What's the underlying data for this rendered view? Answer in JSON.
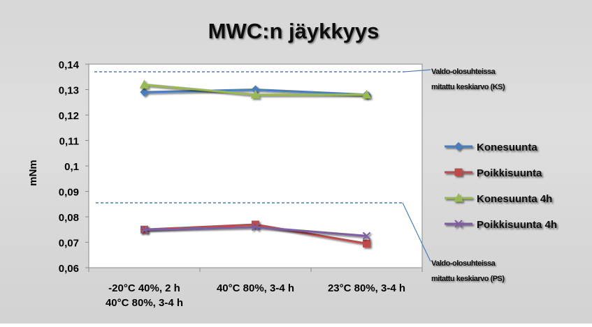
{
  "chart_data": {
    "type": "line",
    "title": "MWC:n jäykkyys",
    "ylabel": "mNm",
    "xlabel": "",
    "ylim": [
      0.06,
      0.14
    ],
    "yticks": [
      0.06,
      0.07,
      0.08,
      0.09,
      0.1,
      0.11,
      0.12,
      0.13,
      0.14
    ],
    "ytick_labels": [
      "0,06",
      "0,07",
      "0,08",
      "0,09",
      "0,1",
      "0,11",
      "0,12",
      "0,13",
      "0,14"
    ],
    "categories": [
      [
        "-20°C 40%, 2 h",
        "40°C 80%, 3-4 h"
      ],
      [
        "40°C 80%, 3-4 h"
      ],
      [
        "23°C 80%, 3-4 h"
      ]
    ],
    "grid": false,
    "legend_position": "right",
    "series": [
      {
        "name": "Konesuunta",
        "values": [
          0.129,
          0.13,
          0.128
        ],
        "color": "#4a7ebb",
        "marker": "diamond"
      },
      {
        "name": "Poikkisuunta",
        "values": [
          0.075,
          0.077,
          0.0695
        ],
        "color": "#be4b48",
        "marker": "square"
      },
      {
        "name": "Konesuunta 4h",
        "values": [
          0.132,
          0.128,
          0.128
        ],
        "color": "#98b954",
        "marker": "triangle"
      },
      {
        "name": "Poikkisuunta 4h",
        "values": [
          0.075,
          0.076,
          0.0725
        ],
        "color": "#7d5fa0",
        "marker": "x"
      }
    ],
    "reference_lines": [
      {
        "value": 0.137,
        "label_lines": [
          "Valdo-olosuhteissa",
          "mitattu keskiarvo (KS)"
        ],
        "color": "#4a7ebb",
        "style": "dashed"
      },
      {
        "value": 0.0855,
        "label_lines": [
          "Valdo-olosuhteissa",
          "mitattu keskiarvo (PS)"
        ],
        "color": "#4a7ebb",
        "style": "dashed"
      }
    ]
  }
}
